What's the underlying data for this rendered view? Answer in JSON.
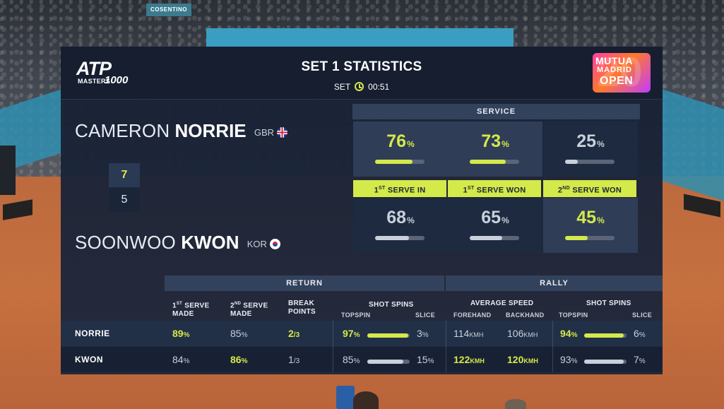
{
  "background": {
    "sponsor_text": "COSENTINO"
  },
  "header": {
    "title": "SET 1 STATISTICS",
    "set_label": "SET",
    "timer": "00:51",
    "atp_logo": {
      "main": "ATP",
      "sub": "MASTERS",
      "num": "1000"
    },
    "event_logo": {
      "line1": "MUTUA",
      "line2": "MADRID",
      "line3": "OPEN"
    }
  },
  "players": {
    "p1": {
      "first": "CAMERON",
      "last": "NORRIE",
      "country": "GBR",
      "set_score": "7",
      "flag_icon": "flag-gbr-icon"
    },
    "p2": {
      "first": "SOONWOO",
      "last": "KWON",
      "country": "KOR",
      "set_score": "5",
      "flag_icon": "flag-kor-icon"
    }
  },
  "service": {
    "title": "SERVICE",
    "pct_symbol": "%",
    "columns": [
      {
        "label_prefix": "1",
        "label_sup": "ST",
        "label_rest": " SERVE IN",
        "p1": 76,
        "p2": 68,
        "leader": "p1"
      },
      {
        "label_prefix": "1",
        "label_sup": "ST",
        "label_rest": " SERVE WON",
        "p1": 73,
        "p2": 65,
        "leader": "p1"
      },
      {
        "label_prefix": "2",
        "label_sup": "ND",
        "label_rest": " SERVE WON",
        "p1": 25,
        "p2": 45,
        "leader": "p2"
      }
    ]
  },
  "return": {
    "title": "RETURN",
    "first_serve_made": {
      "h1": "1",
      "sup": "ST",
      "h1b": " SERVE",
      "h2": "MADE",
      "p1": 89,
      "p2": 84
    },
    "second_serve_made": {
      "h1": "2",
      "sup": "ND",
      "h1b": " SERVE",
      "h2": "MADE",
      "p1": 85,
      "p2": 86
    },
    "break_points": {
      "h1": "BREAK",
      "h2": "POINTS",
      "p1_won": "2",
      "p1_total": "/3",
      "p2_won": "1",
      "p2_total": "/3"
    },
    "shot_spins": {
      "title": "SHOT SPINS",
      "left": "TOPSPIN",
      "right": "SLICE",
      "p1_top": 97,
      "p1_slice": 3,
      "p2_top": 85,
      "p2_slice": 15
    }
  },
  "rally": {
    "title": "RALLY",
    "average_speed": {
      "title": "AVERAGE SPEED",
      "left": "FOREHAND",
      "right": "BACKHAND",
      "unit": "KMH",
      "p1_fh": "114",
      "p1_bh": "106",
      "p2_fh": "122",
      "p2_bh": "120"
    },
    "shot_spins": {
      "title": "SHOT SPINS",
      "left": "TOPSPIN",
      "right": "SLICE",
      "p1_top": 94,
      "p1_slice": 6,
      "p2_top": 93,
      "p2_slice": 7
    }
  },
  "rows": {
    "p1": "NORRIE",
    "p2": "KWON"
  },
  "colors": {
    "accent": "#d4e94a",
    "panel": "#1c2740",
    "muted": "#c9d0db"
  }
}
